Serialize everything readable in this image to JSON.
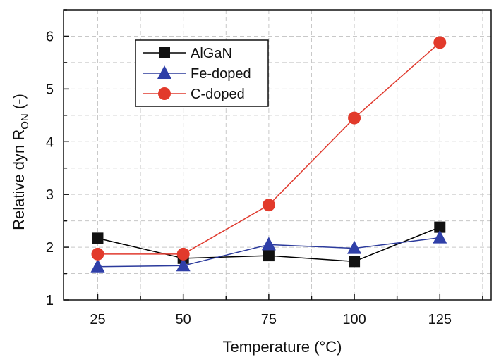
{
  "chart_data": {
    "type": "line",
    "x": [
      25,
      50,
      75,
      100,
      125
    ],
    "xlabel": "Temperature (°C)",
    "ylabel_main": "Relative dyn R",
    "ylabel_sub": "ON",
    "ylabel_suffix": " (-)",
    "xlim": [
      15,
      140
    ],
    "ylim": [
      1,
      6.5
    ],
    "xticks": [
      25,
      50,
      75,
      100,
      125
    ],
    "xtick_labels": [
      "25",
      "50",
      "75",
      "100",
      "125"
    ],
    "yticks": [
      1,
      2,
      3,
      4,
      5,
      6
    ],
    "ytick_labels": [
      "1",
      "2",
      "3",
      "4",
      "5",
      "6"
    ],
    "grid": true,
    "legend_position": "top-left",
    "series": [
      {
        "name": "AlGaN",
        "marker": "square",
        "color": "#000000",
        "marker_color": "#111111",
        "values": [
          2.17,
          1.79,
          1.84,
          1.73,
          2.38
        ]
      },
      {
        "name": "Fe-doped",
        "marker": "triangle",
        "color": "#2b3a9c",
        "marker_color": "#2f3fa8",
        "values": [
          1.63,
          1.65,
          2.05,
          1.98,
          2.18
        ]
      },
      {
        "name": "C-doped",
        "marker": "circle",
        "color": "#e03a2e",
        "marker_color": "#e23a2b",
        "values": [
          1.87,
          1.87,
          2.8,
          4.45,
          5.88
        ]
      }
    ]
  }
}
